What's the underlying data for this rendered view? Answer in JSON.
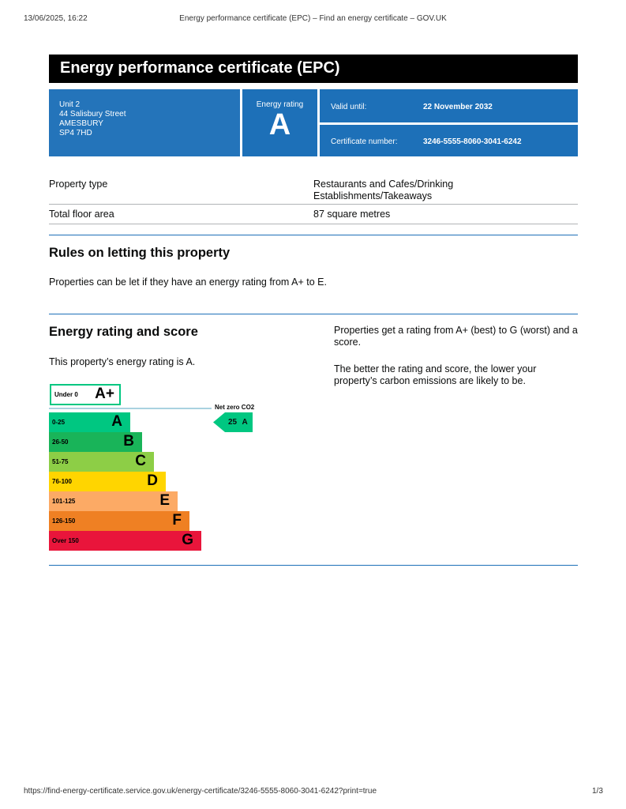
{
  "print_header": {
    "date": "13/06/2025, 16:22",
    "page_title": "Energy performance certificate (EPC) – Find an energy certificate – GOV.UK"
  },
  "print_footer": {
    "url": "https://find-energy-certificate.service.gov.uk/energy-certificate/3246-5555-8060-3041-6242?print=true",
    "page": "1/3"
  },
  "title": "Energy performance certificate (EPC)",
  "address": [
    "Unit 2",
    "44 Salisbury Street",
    "AMESBURY",
    "SP4 7HD"
  ],
  "rating_label": "Energy rating",
  "rating": "A",
  "valid_label": "Valid until:",
  "valid_value": "22 November 2032",
  "cert_label": "Certificate number:",
  "cert_value": "3246-5555-8060-3041-6242",
  "summary": [
    {
      "label": "Property type",
      "value": "Restaurants and Cafes/Drinking Establishments/Takeaways"
    },
    {
      "label": "Total floor area",
      "value": "87 square metres"
    }
  ],
  "letting": {
    "heading": "Rules on letting this property",
    "text": "Properties can be let if they have an energy rating from A+ to E."
  },
  "energy": {
    "heading": "Energy rating and score",
    "text": "This property’s energy rating is A.",
    "side1": "Properties get a rating from A+ (best) to G (worst) and a score.",
    "side2": "The better the rating and score, the lower your property’s carbon emissions are likely to be."
  },
  "chart": {
    "aplus": {
      "band": "Under 0",
      "letter": "A+",
      "color": "#00c781"
    },
    "net_zero": "Net zero CO2",
    "current": {
      "score": "25",
      "letter": "A"
    },
    "bands": [
      {
        "band": "0-25",
        "letter": "A",
        "color": "#00c781"
      },
      {
        "band": "26-50",
        "letter": "B",
        "color": "#19b459"
      },
      {
        "band": "51-75",
        "letter": "C",
        "color": "#8dce46"
      },
      {
        "band": "76-100",
        "letter": "D",
        "color": "#ffd500"
      },
      {
        "band": "101-125",
        "letter": "E",
        "color": "#fcaa65"
      },
      {
        "band": "126-150",
        "letter": "F",
        "color": "#ef8023"
      },
      {
        "band": "Over 150",
        "letter": "G",
        "color": "#e9153b"
      }
    ]
  }
}
